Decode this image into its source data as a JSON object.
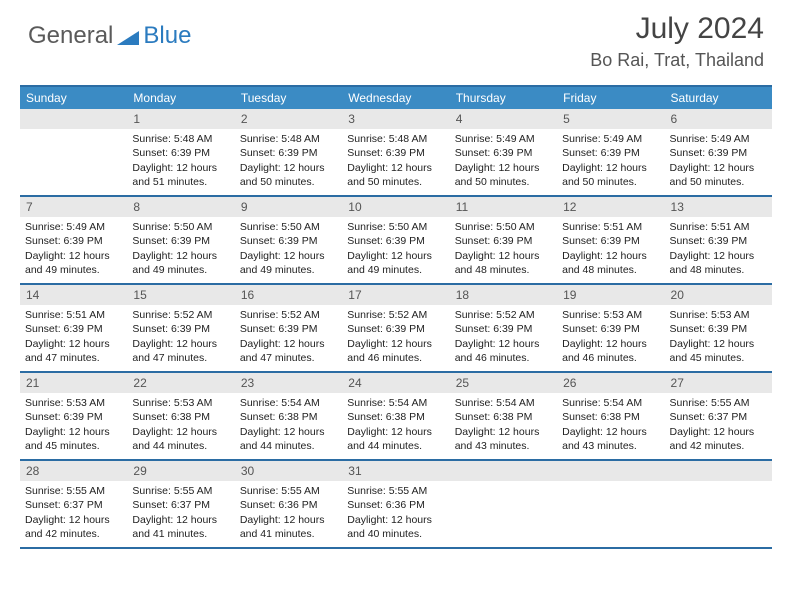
{
  "logo": {
    "text1": "General",
    "text2": "Blue",
    "color1": "#666666",
    "color2": "#2b7bbf"
  },
  "title": "July 2024",
  "location": "Bo Rai, Trat, Thailand",
  "header_bg": "#3b8bc4",
  "border_color": "#2b6ca3",
  "daynum_bg": "#e8e8e8",
  "day_names": [
    "Sunday",
    "Monday",
    "Tuesday",
    "Wednesday",
    "Thursday",
    "Friday",
    "Saturday"
  ],
  "weeks": [
    [
      null,
      {
        "n": "1",
        "sr": "5:48 AM",
        "ss": "6:39 PM",
        "dl": "12 hours and 51 minutes."
      },
      {
        "n": "2",
        "sr": "5:48 AM",
        "ss": "6:39 PM",
        "dl": "12 hours and 50 minutes."
      },
      {
        "n": "3",
        "sr": "5:48 AM",
        "ss": "6:39 PM",
        "dl": "12 hours and 50 minutes."
      },
      {
        "n": "4",
        "sr": "5:49 AM",
        "ss": "6:39 PM",
        "dl": "12 hours and 50 minutes."
      },
      {
        "n": "5",
        "sr": "5:49 AM",
        "ss": "6:39 PM",
        "dl": "12 hours and 50 minutes."
      },
      {
        "n": "6",
        "sr": "5:49 AM",
        "ss": "6:39 PM",
        "dl": "12 hours and 50 minutes."
      }
    ],
    [
      {
        "n": "7",
        "sr": "5:49 AM",
        "ss": "6:39 PM",
        "dl": "12 hours and 49 minutes."
      },
      {
        "n": "8",
        "sr": "5:50 AM",
        "ss": "6:39 PM",
        "dl": "12 hours and 49 minutes."
      },
      {
        "n": "9",
        "sr": "5:50 AM",
        "ss": "6:39 PM",
        "dl": "12 hours and 49 minutes."
      },
      {
        "n": "10",
        "sr": "5:50 AM",
        "ss": "6:39 PM",
        "dl": "12 hours and 49 minutes."
      },
      {
        "n": "11",
        "sr": "5:50 AM",
        "ss": "6:39 PM",
        "dl": "12 hours and 48 minutes."
      },
      {
        "n": "12",
        "sr": "5:51 AM",
        "ss": "6:39 PM",
        "dl": "12 hours and 48 minutes."
      },
      {
        "n": "13",
        "sr": "5:51 AM",
        "ss": "6:39 PM",
        "dl": "12 hours and 48 minutes."
      }
    ],
    [
      {
        "n": "14",
        "sr": "5:51 AM",
        "ss": "6:39 PM",
        "dl": "12 hours and 47 minutes."
      },
      {
        "n": "15",
        "sr": "5:52 AM",
        "ss": "6:39 PM",
        "dl": "12 hours and 47 minutes."
      },
      {
        "n": "16",
        "sr": "5:52 AM",
        "ss": "6:39 PM",
        "dl": "12 hours and 47 minutes."
      },
      {
        "n": "17",
        "sr": "5:52 AM",
        "ss": "6:39 PM",
        "dl": "12 hours and 46 minutes."
      },
      {
        "n": "18",
        "sr": "5:52 AM",
        "ss": "6:39 PM",
        "dl": "12 hours and 46 minutes."
      },
      {
        "n": "19",
        "sr": "5:53 AM",
        "ss": "6:39 PM",
        "dl": "12 hours and 46 minutes."
      },
      {
        "n": "20",
        "sr": "5:53 AM",
        "ss": "6:39 PM",
        "dl": "12 hours and 45 minutes."
      }
    ],
    [
      {
        "n": "21",
        "sr": "5:53 AM",
        "ss": "6:39 PM",
        "dl": "12 hours and 45 minutes."
      },
      {
        "n": "22",
        "sr": "5:53 AM",
        "ss": "6:38 PM",
        "dl": "12 hours and 44 minutes."
      },
      {
        "n": "23",
        "sr": "5:54 AM",
        "ss": "6:38 PM",
        "dl": "12 hours and 44 minutes."
      },
      {
        "n": "24",
        "sr": "5:54 AM",
        "ss": "6:38 PM",
        "dl": "12 hours and 44 minutes."
      },
      {
        "n": "25",
        "sr": "5:54 AM",
        "ss": "6:38 PM",
        "dl": "12 hours and 43 minutes."
      },
      {
        "n": "26",
        "sr": "5:54 AM",
        "ss": "6:38 PM",
        "dl": "12 hours and 43 minutes."
      },
      {
        "n": "27",
        "sr": "5:55 AM",
        "ss": "6:37 PM",
        "dl": "12 hours and 42 minutes."
      }
    ],
    [
      {
        "n": "28",
        "sr": "5:55 AM",
        "ss": "6:37 PM",
        "dl": "12 hours and 42 minutes."
      },
      {
        "n": "29",
        "sr": "5:55 AM",
        "ss": "6:37 PM",
        "dl": "12 hours and 41 minutes."
      },
      {
        "n": "30",
        "sr": "5:55 AM",
        "ss": "6:36 PM",
        "dl": "12 hours and 41 minutes."
      },
      {
        "n": "31",
        "sr": "5:55 AM",
        "ss": "6:36 PM",
        "dl": "12 hours and 40 minutes."
      },
      null,
      null,
      null
    ]
  ],
  "labels": {
    "sunrise": "Sunrise: ",
    "sunset": "Sunset: ",
    "daylight": "Daylight: "
  }
}
